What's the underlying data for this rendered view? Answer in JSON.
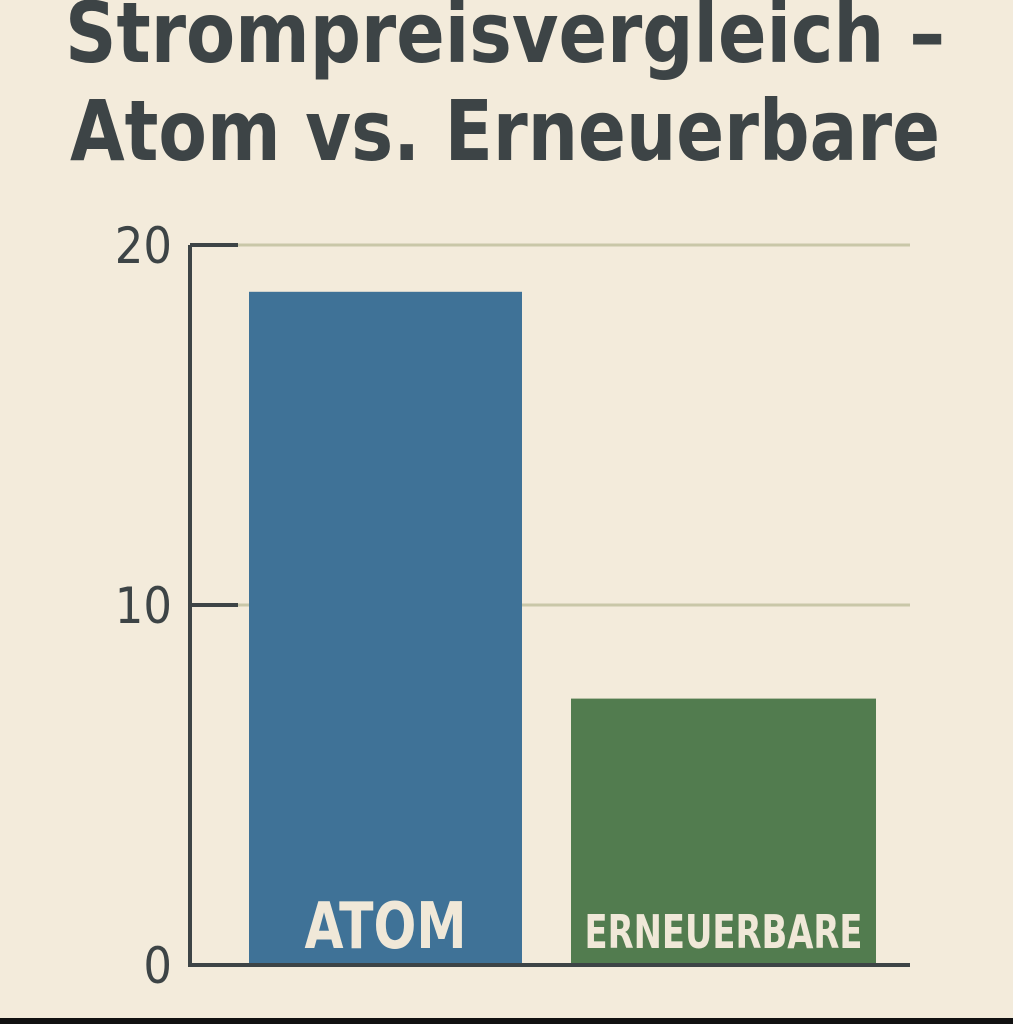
{
  "chart_data": {
    "type": "bar",
    "title": [
      "Strompreisvergleich –",
      "Atom vs. Erneuerbare"
    ],
    "categories": [
      "ATOM",
      "ERNEUERBARE"
    ],
    "values": [
      18.7,
      7.4
    ],
    "colors": [
      "#3f7297",
      "#527c4f"
    ],
    "ylim": [
      0,
      20
    ],
    "yticks": [
      0,
      10,
      20
    ],
    "grid": true
  }
}
